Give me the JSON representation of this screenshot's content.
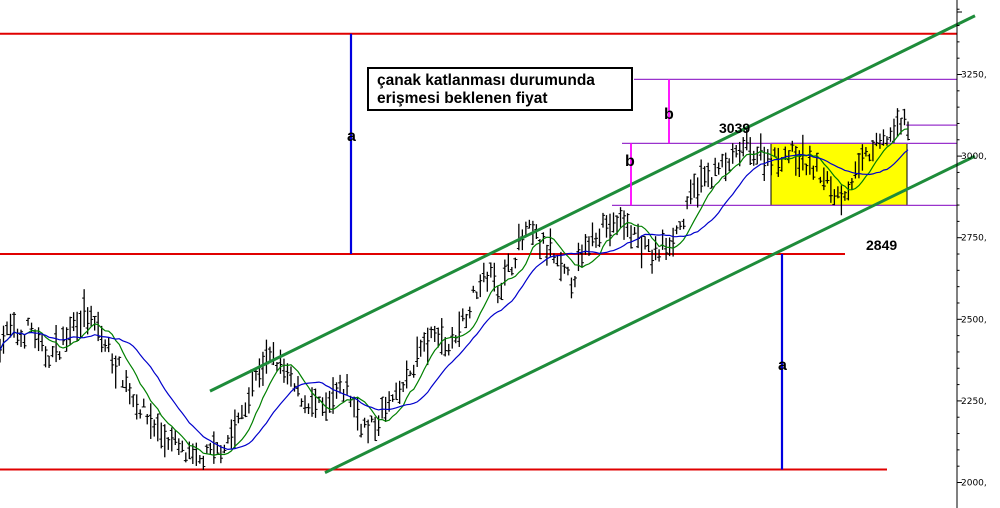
{
  "chart_data": {
    "type": "ohlc",
    "y_axis": {
      "ticks": [
        2000,
        2250,
        2500,
        2750,
        3000,
        3250
      ],
      "tick_labels": [
        "2000,",
        "2250,",
        "2500,",
        "2750,",
        "3000,",
        "3250,"
      ],
      "range": [
        1985,
        3475
      ],
      "position": "right"
    },
    "price_path": [
      2430,
      2470,
      2440,
      2480,
      2400,
      2390,
      2420,
      2480,
      2520,
      2490,
      2440,
      2380,
      2330,
      2260,
      2220,
      2180,
      2140,
      2120,
      2090,
      2060,
      2075,
      2090,
      2120,
      2160,
      2230,
      2320,
      2370,
      2380,
      2330,
      2280,
      2250,
      2230,
      2220,
      2270,
      2290,
      2210,
      2160,
      2180,
      2240,
      2260,
      2320,
      2400,
      2430,
      2460,
      2410,
      2480,
      2540,
      2610,
      2640,
      2600,
      2660,
      2740,
      2770,
      2730,
      2700,
      2640,
      2620,
      2680,
      2760,
      2790,
      2780,
      2800,
      2770,
      2720,
      2690,
      2720,
      2760,
      2800,
      2900,
      2930,
      2950,
      2970,
      2990,
      3030,
      3010,
      3000,
      2990,
      3010,
      3000,
      2980,
      2960,
      2920,
      2880,
      2900,
      2950,
      3000,
      3030,
      3060,
      3090,
      3110
    ],
    "moving_averages": [
      {
        "color": "#008000"
      },
      {
        "color": "#0000CC"
      }
    ],
    "annotations": {
      "note_lines": [
        "çanak katlanması durumunda",
        "erişmesi beklenen fiyat"
      ],
      "a_label": "a",
      "b_label": "b",
      "level_high_label": "3039",
      "level_low_label": "2849"
    },
    "levels": {
      "red_top": 3375,
      "red_middle": 2700,
      "red_bottom": 2040,
      "a_length": 665,
      "cup_top": 3039,
      "cup_bottom": 2849,
      "target": 3235,
      "current": 3095
    },
    "channel": {
      "upper": {
        "from": {
          "t": 0.21,
          "v": 2280
        },
        "to": {
          "t": 0.975,
          "v": 3430
        }
      },
      "lower": {
        "from": {
          "t": 0.325,
          "v": 2030
        },
        "to": {
          "t": 0.975,
          "v": 3000
        }
      }
    },
    "colors": {
      "support_resistance": "#E00000",
      "channel": "#1E8C3A",
      "measure": "#0000E0",
      "box_fill": "#FFFF00",
      "box_edge": "#9933CC",
      "b_marker": "#FF00FF",
      "bars": "#000000"
    }
  }
}
